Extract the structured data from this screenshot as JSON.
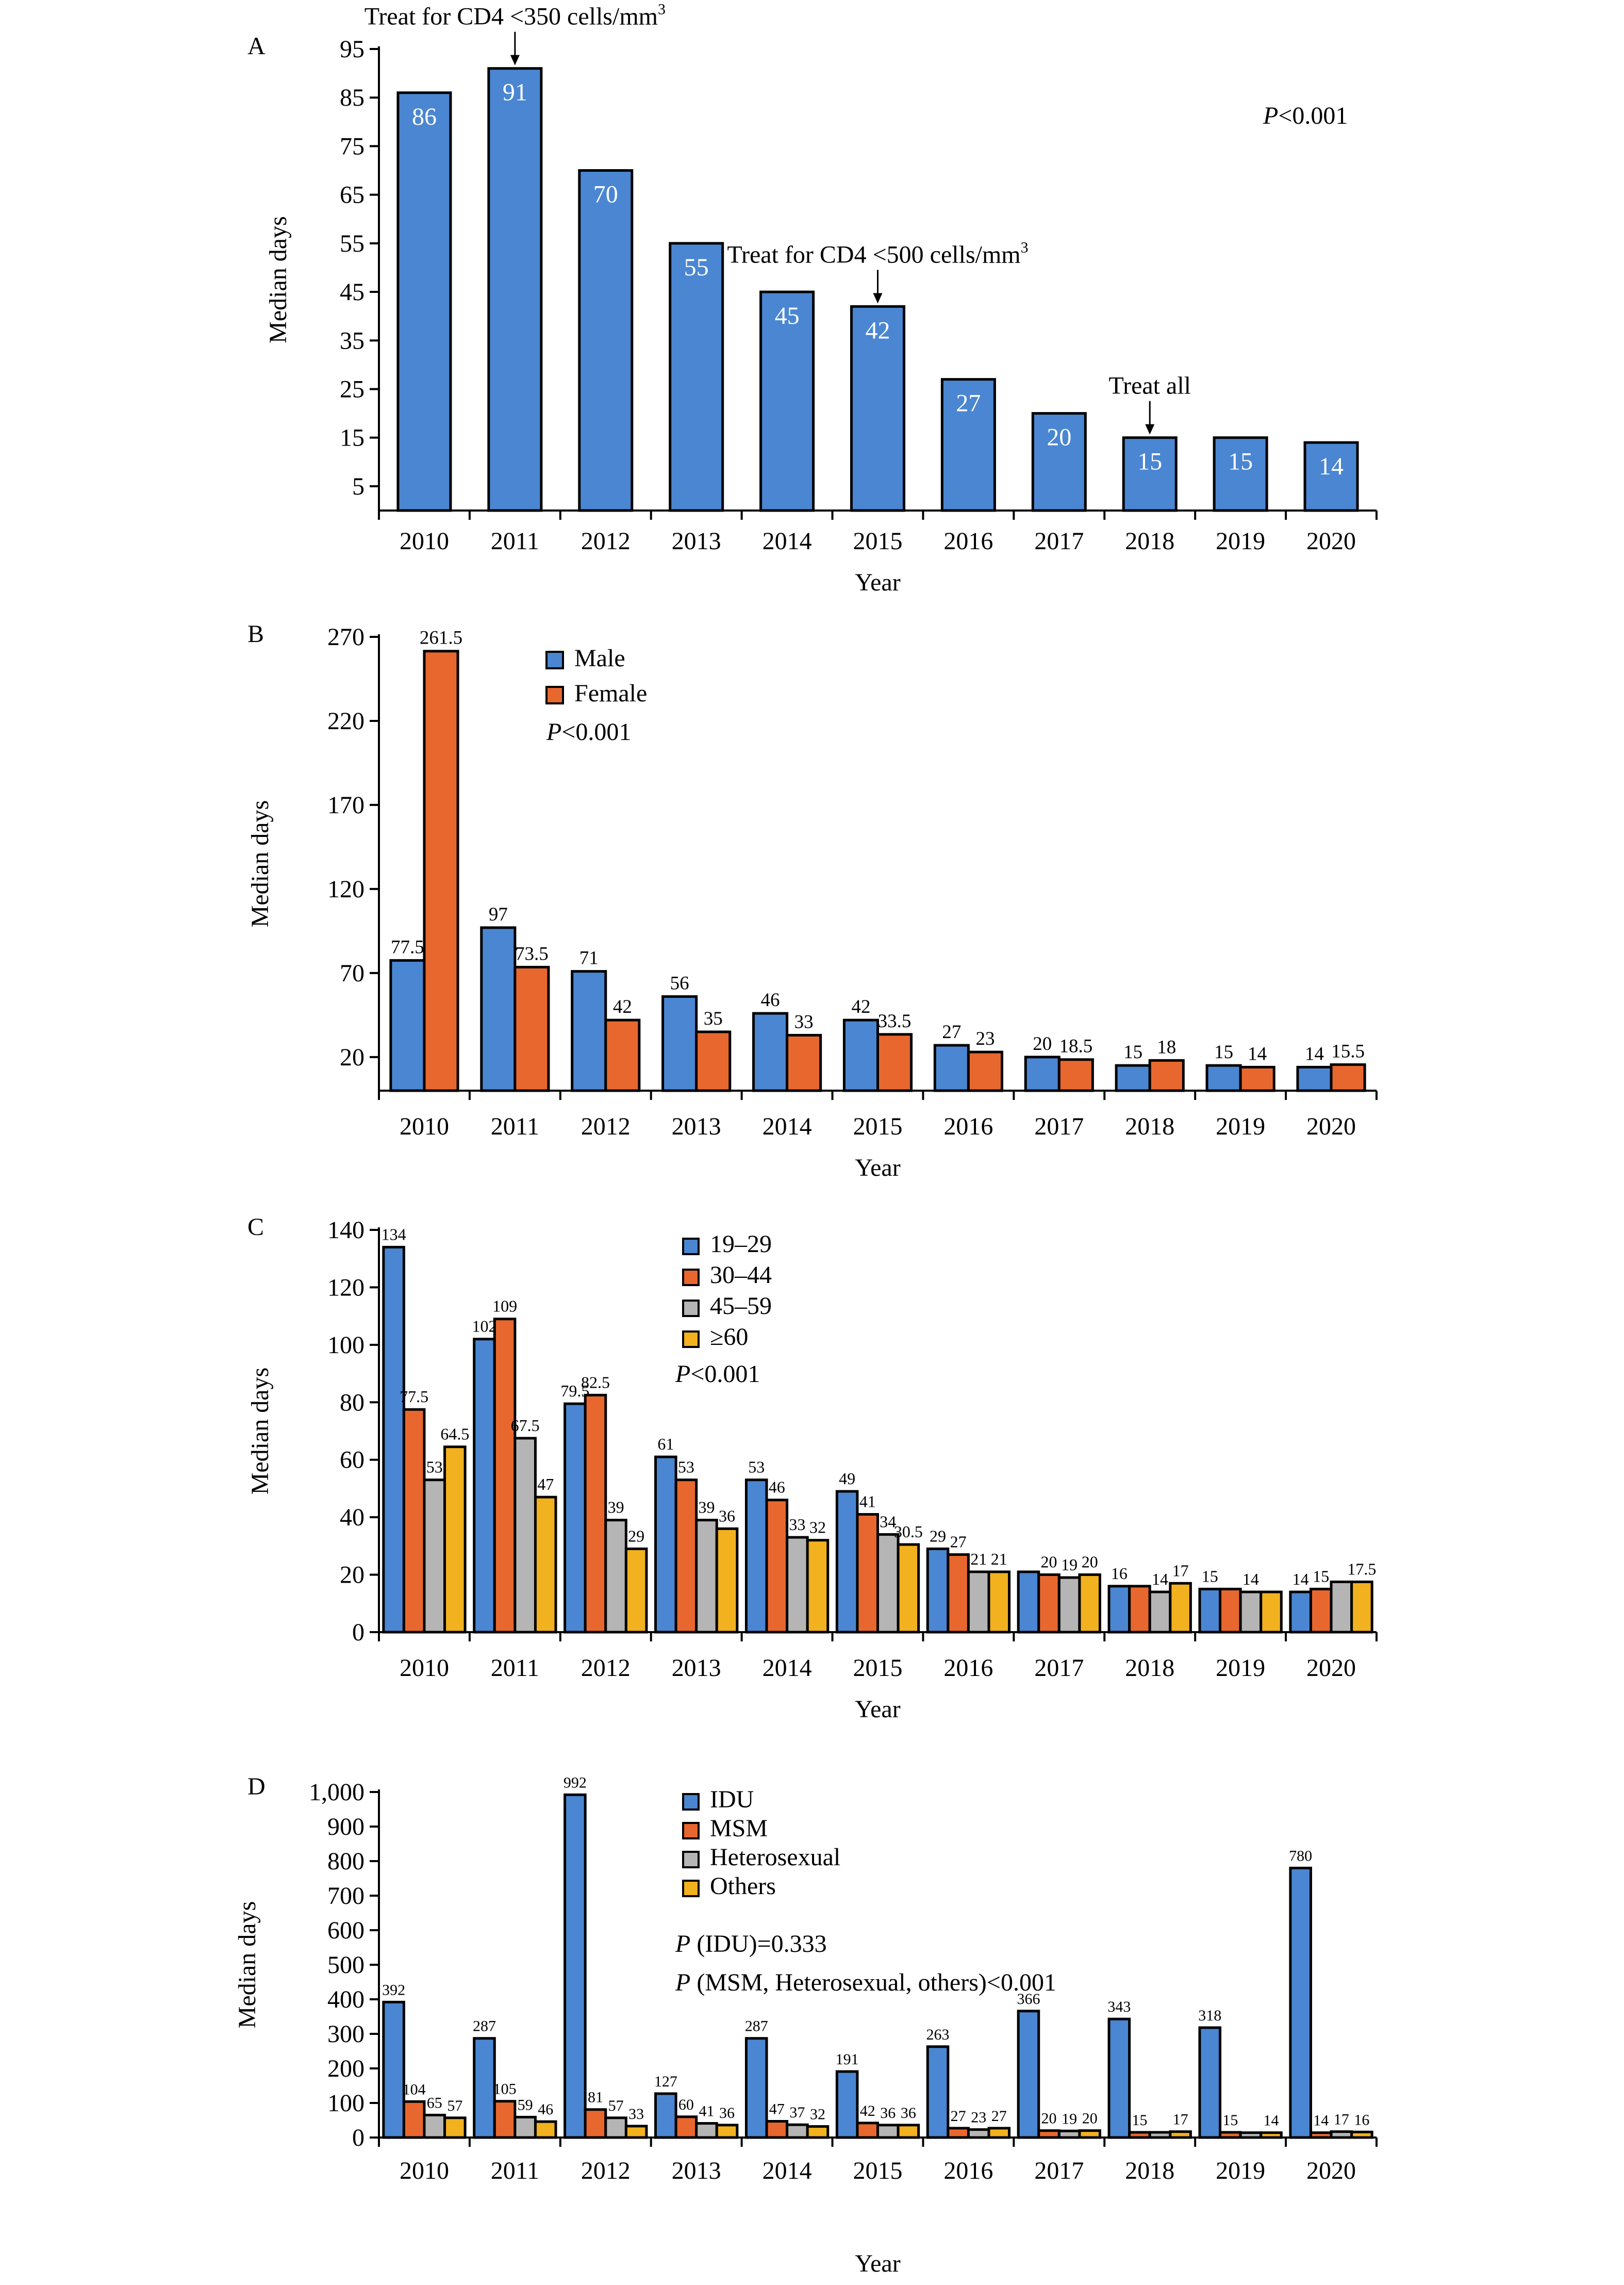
{
  "figure": {
    "x_categories": [
      "2010",
      "2011",
      "2012",
      "2013",
      "2014",
      "2015",
      "2016",
      "2017",
      "2018",
      "2019",
      "2020"
    ]
  },
  "chart_data": [
    {
      "panel_label": "A",
      "type": "bar",
      "categories": [
        "2010",
        "2011",
        "2012",
        "2013",
        "2014",
        "2015",
        "2016",
        "2017",
        "2018",
        "2019",
        "2020"
      ],
      "series": [
        {
          "values": [
            86,
            91,
            70,
            55,
            45,
            42,
            27,
            20,
            15,
            15,
            14
          ],
          "labels": [
            "86",
            "91",
            "70",
            "55",
            "45",
            "42",
            "27",
            "20",
            "15",
            "15",
            "14"
          ],
          "color": "#4a86d2"
        }
      ],
      "xlabel": "Year",
      "ylabel": "Median days",
      "ylim": [
        0,
        95
      ],
      "yticks": [
        5,
        15,
        25,
        35,
        45,
        55,
        65,
        75,
        85,
        95
      ],
      "ytick_labels": [
        "5",
        "15",
        "25",
        "35",
        "45",
        "55",
        "65",
        "75",
        "85",
        "95"
      ],
      "grid": false,
      "legend": null,
      "labels_inside": true,
      "stats_text": {
        "italic": "P",
        "rest": "<0.001"
      },
      "annotations": [
        {
          "text": "Treat for CD4 <350 cells/mm",
          "sup": "3",
          "year": "2011"
        },
        {
          "text": "Treat for CD4 <500 cells/mm",
          "sup": "3",
          "year": "2015"
        },
        {
          "text": "Treat all",
          "sup": "",
          "year": "2018"
        }
      ]
    },
    {
      "panel_label": "B",
      "type": "bar",
      "categories": [
        "2010",
        "2011",
        "2012",
        "2013",
        "2014",
        "2015",
        "2016",
        "2017",
        "2018",
        "2019",
        "2020"
      ],
      "series": [
        {
          "name": "Male",
          "color": "#4a86d2",
          "values": [
            77.5,
            97,
            71,
            56,
            46,
            42,
            27,
            20,
            15,
            15,
            14
          ],
          "labels": [
            "77.5",
            "97",
            "71",
            "56",
            "46",
            "42",
            "27",
            "20",
            "15",
            "15",
            "14"
          ]
        },
        {
          "name": "Female",
          "color": "#e8672e",
          "values": [
            261.5,
            73.5,
            42,
            35,
            33,
            33.5,
            23,
            18.5,
            18,
            14,
            15.5
          ],
          "labels": [
            "261.5",
            "73.5",
            "42",
            "35",
            "33",
            "33.5",
            "23",
            "18.5",
            "18",
            "14",
            "15.5"
          ]
        }
      ],
      "xlabel": "Year",
      "ylabel": "Median days",
      "ylim": [
        0,
        270
      ],
      "yticks": [
        20,
        70,
        120,
        170,
        220,
        270
      ],
      "ytick_labels": [
        "20",
        "70",
        "120",
        "170",
        "220",
        "270"
      ],
      "grid": false,
      "legend": "top-left",
      "stats_text": {
        "italic": "P",
        "rest": "<0.001"
      }
    },
    {
      "panel_label": "C",
      "type": "bar",
      "categories": [
        "2010",
        "2011",
        "2012",
        "2013",
        "2014",
        "2015",
        "2016",
        "2017",
        "2018",
        "2019",
        "2020"
      ],
      "series": [
        {
          "name": "19–29",
          "color": "#4a86d2",
          "values": [
            134,
            102,
            79.5,
            61,
            53,
            49,
            29,
            21,
            16,
            15,
            14
          ],
          "labels": [
            "134",
            "102",
            "79.5",
            "61",
            "53",
            "49",
            "29",
            "",
            "16",
            "15",
            "14"
          ]
        },
        {
          "name": "30–44",
          "color": "#e8672e",
          "values": [
            77.5,
            109,
            82.5,
            53,
            46,
            41,
            27,
            20,
            16,
            15,
            15
          ],
          "labels": [
            "77.5",
            "109",
            "82.5",
            "53",
            "46",
            "41",
            "27",
            "20",
            "",
            "",
            "15"
          ]
        },
        {
          "name": "45–59",
          "color": "#b5b5b5",
          "values": [
            53,
            67.5,
            39,
            39,
            33,
            34,
            21,
            19,
            14,
            14,
            17.5
          ],
          "labels": [
            "53",
            "67.5",
            "39",
            "39",
            "33",
            "34",
            "21",
            "19",
            "14",
            "14",
            ""
          ]
        },
        {
          "name": "≥60",
          "color": "#f2b11e",
          "values": [
            64.5,
            47,
            29,
            36,
            32,
            30.5,
            21,
            20,
            17,
            14,
            17.5
          ],
          "labels": [
            "64.5",
            "47",
            "29",
            "36",
            "32",
            "30.5",
            "21",
            "20",
            "17",
            "",
            "17.5"
          ]
        }
      ],
      "xlabel": "Year",
      "ylabel": "Median days",
      "ylim": [
        0,
        140
      ],
      "yticks": [
        0,
        20,
        40,
        60,
        80,
        100,
        120,
        140
      ],
      "ytick_labels": [
        "0",
        "20",
        "40",
        "60",
        "80",
        "100",
        "120",
        "140"
      ],
      "grid": false,
      "legend": "top-center",
      "stats_text": {
        "italic": "P",
        "rest": "<0.001"
      }
    },
    {
      "panel_label": "D",
      "type": "bar",
      "categories": [
        "2010",
        "2011",
        "2012",
        "2013",
        "2014",
        "2015",
        "2016",
        "2017",
        "2018",
        "2019",
        "2020"
      ],
      "series": [
        {
          "name": "IDU",
          "color": "#4a86d2",
          "values": [
            392,
            287,
            992,
            127,
            287,
            191,
            263,
            366,
            343,
            318,
            780
          ],
          "labels": [
            "392",
            "287",
            "992",
            "127",
            "287",
            "191",
            "263",
            "366",
            "343",
            "318",
            "780"
          ]
        },
        {
          "name": "MSM",
          "color": "#e8672e",
          "values": [
            104,
            105,
            81,
            60,
            47,
            42,
            27,
            20,
            15,
            15,
            14
          ],
          "labels": [
            "104",
            "105",
            "81",
            "60",
            "47",
            "42",
            "27",
            "20",
            "15",
            "15",
            "14"
          ]
        },
        {
          "name": "Heterosexual",
          "color": "#b5b5b5",
          "values": [
            65,
            59,
            57,
            41,
            37,
            36,
            23,
            19,
            15,
            14,
            17
          ],
          "labels": [
            "65",
            "59",
            "57",
            "41",
            "37",
            "36",
            "23",
            "19",
            "",
            "",
            "17"
          ]
        },
        {
          "name": "Others",
          "color": "#f2b11e",
          "values": [
            57,
            46,
            33,
            36,
            32,
            36,
            27,
            20,
            17,
            14,
            16
          ],
          "labels": [
            "57",
            "46",
            "33",
            "36",
            "32",
            "36",
            "27",
            "20",
            "17",
            "14",
            "16"
          ]
        }
      ],
      "xlabel": "Year",
      "ylabel": "Median days",
      "ylim": [
        0,
        1000
      ],
      "yticks": [
        0,
        100,
        200,
        300,
        400,
        500,
        600,
        700,
        800,
        900,
        1000
      ],
      "ytick_labels": [
        "0",
        "100",
        "200",
        "300",
        "400",
        "500",
        "600",
        "700",
        "800",
        "900",
        "1,000"
      ],
      "grid": false,
      "legend": "top-center",
      "stats_lines": [
        {
          "italic": "P",
          "rest": " (IDU)=0.333"
        },
        {
          "italic": "P",
          "rest": " (MSM, Heterosexual, others)<0.001"
        }
      ]
    }
  ]
}
